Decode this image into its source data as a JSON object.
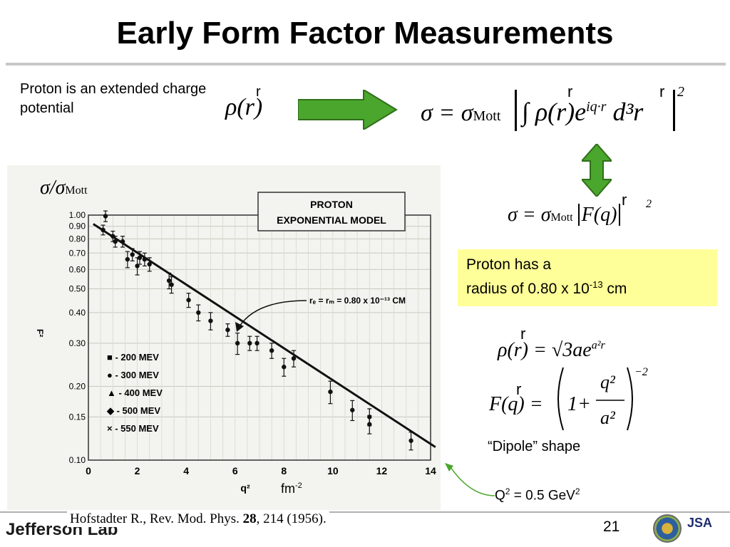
{
  "slide": {
    "title": "Early Form Factor Measurements",
    "intro": "Proton is an extended charge potential",
    "callout_line1": "Proton has a",
    "callout_line2_prefix": "radius of 0.80 x 10",
    "callout_exp": "-13",
    "callout_suffix": " cm",
    "dipole_caption": "“Dipole” shape",
    "q2_caption_prefix": "Q",
    "q2_caption_sup": "2",
    "q2_caption_mid": " = 0.5 GeV",
    "q2_caption_sup2": "2",
    "fm_label": "fm",
    "fm_exp": "-2",
    "reference_prefix": "Hofstadter R., Rev. Mod. Phys. ",
    "reference_volume": "28",
    "reference_suffix": ", 214 (1956).",
    "page_number": "21",
    "logo_text": "Jefferson Lab",
    "jsa_text": "JSA"
  },
  "equations": {
    "rho_r": "ρ(r)",
    "sigma_main_lhs": "σ = σ",
    "mott": "Mott",
    "integral_body": "∫ ρ(r)e",
    "integral_exp": "iq·r",
    "d3r": "d³r",
    "pow2": "2",
    "form_lhs": "σ = σ",
    "form_body": "F(q)",
    "rho_def": "ρ(r) = √3ae",
    "rho_def_exp": "a²r",
    "f_def_lhs": "F(q) = ",
    "f_def_one": "1+",
    "f_num": "q²",
    "f_den": "a²",
    "f_exp": "−2",
    "ylabel": "σ/σ",
    "ylabel_sub": "Mott",
    "vec_mark": "r"
  },
  "chart_data": {
    "type": "scatter",
    "title": "PROTON EXPONENTIAL MODEL",
    "xlabel": "q²",
    "ylabel": "F²",
    "xlim": [
      0,
      14
    ],
    "ylim": [
      0.1,
      1.0
    ],
    "yscale": "log",
    "x_ticks": [
      0,
      2,
      4,
      6,
      8,
      10,
      12,
      14
    ],
    "y_ticks": [
      1.0,
      0.9,
      0.8,
      0.7,
      0.6,
      0.5,
      0.4,
      0.3,
      0.2,
      0.15,
      0.1
    ],
    "y_tick_labels": [
      "1.00",
      "0.90",
      "0.80",
      "0.70",
      "0.60",
      "0.50",
      "0.40",
      "0.30",
      "0.20",
      "0.15",
      "0.10"
    ],
    "annotation": "rₑ = rₘ = 0.80 x 10⁻¹³ CM",
    "legend": [
      "■ - 200 MEV",
      "● - 300 MEV",
      "▲ - 400 MEV",
      "◆ - 500 MEV",
      "× - 550 MEV"
    ],
    "legend_position": "bottom-left",
    "fit_line": {
      "x": [
        0.2,
        14.2
      ],
      "y": [
        0.92,
        0.113
      ]
    },
    "points": {
      "x": [
        0.6,
        0.7,
        1.0,
        1.1,
        1.4,
        1.6,
        1.8,
        2.0,
        2.1,
        2.3,
        2.5,
        3.3,
        3.4,
        4.1,
        4.5,
        5.0,
        5.7,
        6.1,
        6.6,
        6.9,
        7.5,
        8.0,
        8.4,
        9.9,
        10.8,
        11.5,
        11.5,
        13.2
      ],
      "y": [
        0.87,
        0.99,
        0.82,
        0.78,
        0.78,
        0.66,
        0.69,
        0.62,
        0.67,
        0.66,
        0.63,
        0.54,
        0.52,
        0.45,
        0.4,
        0.37,
        0.34,
        0.3,
        0.3,
        0.3,
        0.28,
        0.24,
        0.26,
        0.19,
        0.16,
        0.14,
        0.15,
        0.12
      ],
      "err": [
        0.04,
        0.05,
        0.04,
        0.04,
        0.04,
        0.05,
        0.04,
        0.05,
        0.04,
        0.04,
        0.04,
        0.04,
        0.04,
        0.03,
        0.03,
        0.03,
        0.02,
        0.03,
        0.02,
        0.02,
        0.02,
        0.02,
        0.02,
        0.02,
        0.015,
        0.012,
        0.012,
        0.01
      ]
    }
  }
}
